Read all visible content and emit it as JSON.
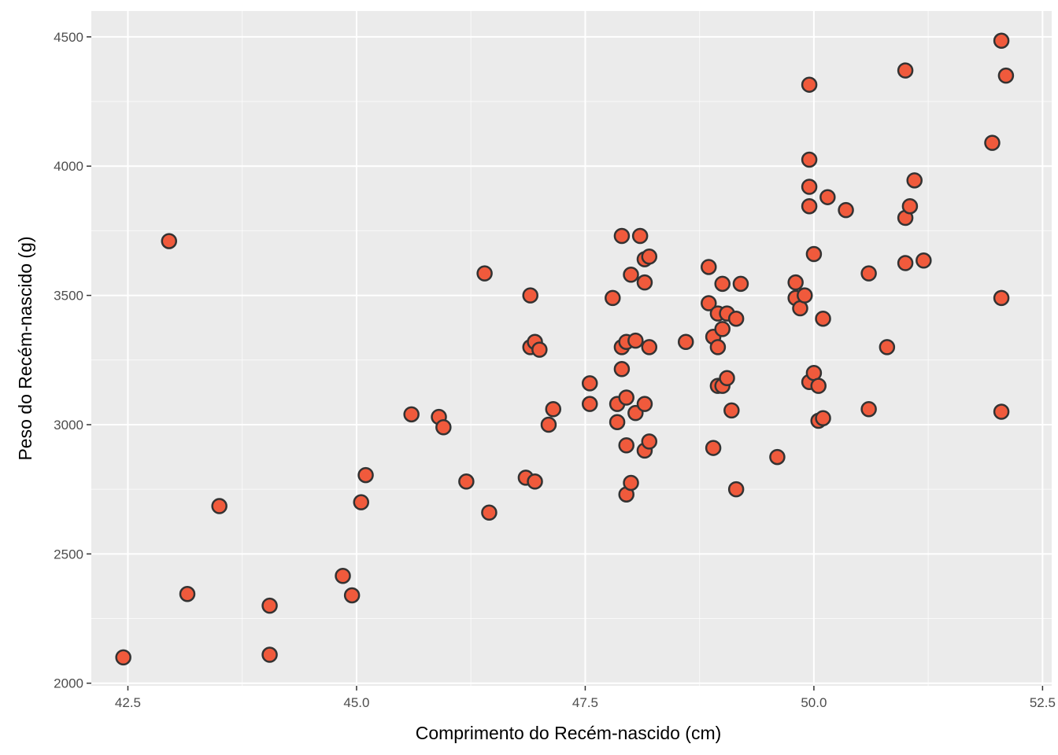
{
  "chart_data": {
    "type": "scatter",
    "xlabel": "Comprimento do Recém-nascido (cm)",
    "ylabel": "Peso do Recém-nascido (g)",
    "xlim": [
      42.1,
      52.6
    ],
    "ylim": [
      1990,
      4600
    ],
    "x_ticks": [
      42.5,
      45.0,
      47.5,
      50.0,
      52.5
    ],
    "x_tick_labels": [
      "42.5",
      "45.0",
      "47.5",
      "50.0",
      "52.5"
    ],
    "y_ticks": [
      2000,
      2500,
      3000,
      3500,
      4000,
      4500
    ],
    "y_tick_labels": [
      "2000",
      "2500",
      "3000",
      "3500",
      "4000",
      "4500"
    ],
    "grid": true,
    "colors": {
      "panel": "#ebebeb",
      "grid": "#ffffff",
      "point_fill": "#f05a3c",
      "point_stroke": "#333333"
    },
    "points": [
      [
        42.45,
        2100
      ],
      [
        42.95,
        3710
      ],
      [
        43.15,
        2345
      ],
      [
        43.5,
        2685
      ],
      [
        44.05,
        2110
      ],
      [
        44.05,
        2300
      ],
      [
        44.85,
        2415
      ],
      [
        44.95,
        2340
      ],
      [
        45.05,
        2700
      ],
      [
        45.1,
        2805
      ],
      [
        45.6,
        3040
      ],
      [
        45.9,
        3030
      ],
      [
        45.95,
        2990
      ],
      [
        46.2,
        2780
      ],
      [
        46.4,
        3585
      ],
      [
        46.45,
        2660
      ],
      [
        46.85,
        2795
      ],
      [
        46.9,
        3500
      ],
      [
        46.9,
        3300
      ],
      [
        46.95,
        2780
      ],
      [
        46.95,
        3320
      ],
      [
        47.0,
        3290
      ],
      [
        47.1,
        3000
      ],
      [
        47.15,
        3060
      ],
      [
        47.55,
        3160
      ],
      [
        47.55,
        3080
      ],
      [
        47.8,
        3490
      ],
      [
        47.85,
        3010
      ],
      [
        47.85,
        3080
      ],
      [
        47.9,
        3215
      ],
      [
        47.9,
        3300
      ],
      [
        47.9,
        3730
      ],
      [
        47.95,
        2920
      ],
      [
        47.95,
        2730
      ],
      [
        47.95,
        3105
      ],
      [
        47.95,
        3320
      ],
      [
        48.0,
        2775
      ],
      [
        48.0,
        3580
      ],
      [
        48.05,
        3325
      ],
      [
        48.05,
        3045
      ],
      [
        48.1,
        3730
      ],
      [
        48.15,
        3080
      ],
      [
        48.15,
        3550
      ],
      [
        48.15,
        3640
      ],
      [
        48.15,
        2900
      ],
      [
        48.2,
        2935
      ],
      [
        48.2,
        3650
      ],
      [
        48.2,
        3300
      ],
      [
        48.6,
        3320
      ],
      [
        48.85,
        3470
      ],
      [
        48.85,
        3610
      ],
      [
        48.9,
        2910
      ],
      [
        48.9,
        3340
      ],
      [
        48.95,
        3150
      ],
      [
        48.95,
        3430
      ],
      [
        48.95,
        3300
      ],
      [
        49.0,
        3545
      ],
      [
        49.0,
        3370
      ],
      [
        49.0,
        3150
      ],
      [
        49.05,
        3180
      ],
      [
        49.05,
        3430
      ],
      [
        49.1,
        3055
      ],
      [
        49.15,
        3410
      ],
      [
        49.15,
        2750
      ],
      [
        49.2,
        3545
      ],
      [
        49.6,
        2875
      ],
      [
        49.8,
        3550
      ],
      [
        49.8,
        3490
      ],
      [
        49.85,
        3450
      ],
      [
        49.9,
        3500
      ],
      [
        49.95,
        4315
      ],
      [
        49.95,
        4025
      ],
      [
        49.95,
        3845
      ],
      [
        49.95,
        3920
      ],
      [
        49.95,
        3165
      ],
      [
        50.0,
        3200
      ],
      [
        50.0,
        3660
      ],
      [
        50.05,
        3150
      ],
      [
        50.05,
        3015
      ],
      [
        50.1,
        3025
      ],
      [
        50.1,
        3410
      ],
      [
        50.15,
        3880
      ],
      [
        50.35,
        3830
      ],
      [
        50.6,
        3060
      ],
      [
        50.6,
        3585
      ],
      [
        50.8,
        3300
      ],
      [
        51.0,
        3800
      ],
      [
        51.0,
        3625
      ],
      [
        51.0,
        4370
      ],
      [
        51.05,
        3845
      ],
      [
        51.1,
        3945
      ],
      [
        51.2,
        3635
      ],
      [
        51.95,
        4090
      ],
      [
        52.05,
        4485
      ],
      [
        52.05,
        3490
      ],
      [
        52.05,
        3050
      ],
      [
        52.1,
        4350
      ]
    ]
  }
}
